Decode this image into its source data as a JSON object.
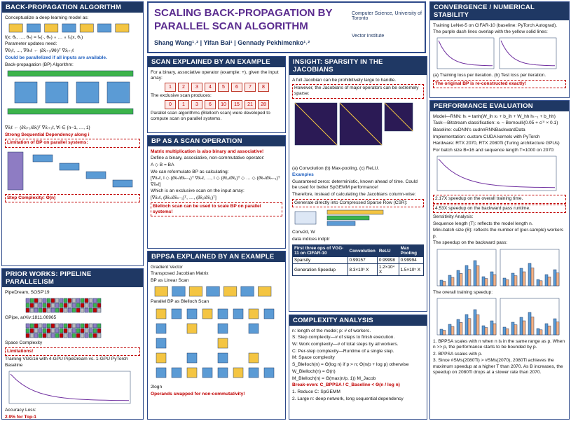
{
  "header": {
    "title": "SCALING BACK-PROPAGATION BY PARALLEL SCAN ALGORITHM",
    "authors": "Shang Wang¹˒² | Yifan Bai¹ | Gennady Pekhimenko¹˒²",
    "affiliations": [
      "Computer Science, University of Toronto",
      "Vector Institute"
    ]
  },
  "sections": [
    {
      "title": "BACK-PROPAGATION ALGORITHM",
      "items": [
        "Conceptualize a deep learning model as:",
        "f(x; θ₁, …, θₙ) = fₙ(·, θₙ) ∘ … ∘ f₁(x, θ₁)",
        "Parameter updates need:",
        "∇θ₁ℓ, …, ∇θₙℓ  ← (∂x̄ᵢ₊₁/∂θᵢ)ᵀ ∇x̄ᵢ₊₁ℓ",
        "Could be parallelized if all inputs are available.",
        "Back-propagation (BP) Algorithm:",
        "∇x̄ᵢℓ ← (∂x̄ᵢ₊₁/∂x̄ᵢ)ᵀ ∇x̄ᵢ₊₁ℓ, ∀i ∈ {n−1, …, 1}",
        "Strong Sequential Dependency along i",
        "Limitation of BP on parallel systems:",
        "Step Complexity: Θ(n)"
      ]
    },
    {
      "title": "PRIOR WORKS: PIPELINE PARALLELISM",
      "items": [
        "PipeDream, SOSP'19",
        "GPipe, arXiv:1811.06965",
        "Space Complexity",
        "Limitations!",
        "Training VGG16 with 4-GPU PipeDream vs. 1-GPU PyTorch Baseline",
        "Accuracy Loss:",
        "2.9% for Top-1"
      ]
    },
    {
      "title": "SCAN EXPLAINED BY AN EXAMPLE",
      "items": [
        "For a binary, associative operator (example: +), given the input array:",
        "The exclusive scan produces:",
        "Parallel scan algorithms (Blelloch scan) were developed to compute scan on parallel systems."
      ]
    },
    {
      "title": "BP AS A SCAN OPERATION",
      "items": [
        "Matrix multiplication is also binary and associative!",
        "Define a binary, associative, non-commutative operator:",
        "A ◇ B = BA",
        "We can reformulate BP as calculating:",
        "[∇x̄ₙℓ, I ◇ (∂x̄ₙ/∂x̄ₙ₋₁)ᵀ ∇x̄ₙℓ, …, I ◇ (∂x̄₂/∂x̄₁)ᵀ ◇ … ◇ (∂x̄ₙ/∂x̄ₙ₋₁)ᵀ ∇x̄ₙℓ]",
        "Which is an exclusive scan on the input array:",
        "[∇x̄ₙℓ, (∂x̄ₙ/∂x̄ₙ₋₁)ᵀ, …, (∂x̄₂/∂x̄₁)ᵀ]",
        "Blelloch scan can be used to scale BP on parallel systems!"
      ]
    },
    {
      "title": "BPPSA EXPLAINED BY AN EXAMPLE",
      "items": [
        "Gradient Vector",
        "Transposed Jacobian Matrix",
        "BP as Linear Scan",
        "Parallel BP as Blelloch Scan",
        "2logn",
        "Operands swapped for non-commutativity!"
      ]
    },
    {
      "title": "INSIGHT: SPARSITY IN THE JACOBIANS",
      "items": [
        "A full Jacobian can be prohibitively large to handle.",
        "However, the Jacobians of major operators can be extremely sparse:",
        "(a) Convolution   (b) Max-pooling.   (c) ReLU.",
        "Examples",
        "Guaranteed zeros: deterministic, known ahead of time. Could be used for better SpGEMM performance!",
        "Therefore, instead of calculating the Jacobians column-wise:",
        "Generate directly into Compressed Sparse Row (CSR):",
        "Conv2d, W",
        "data   indices   indptr"
      ]
    },
    {
      "title": "COMPLEXITY ANALYSIS",
      "items": [
        "n: length of the model; p: # of workers.",
        "S: Step complexity—# of steps to finish execution.",
        "W: Work complexity—# of total steps by all workers.",
        "C: Per-step complexity—Runtime of a single step.",
        "M: Space complexity",
        "S_Blelloch(n) = Θ(log n) if p > n; Θ(n/p + log p) otherwise",
        "W_Blelloch(n) = Θ(n)",
        "M_Blelloch(n) = Θ(max(n/p, 1)) M_Jacob",
        "Break-even: C_BPPSA / C_Baseline < Θ(n / log n)",
        "1. Reduce C: SpGEMM",
        "2. Large n: deep network, long sequential dependency"
      ]
    },
    {
      "title": "CONVERGENCE / NUMERICAL STABILITY",
      "items": [
        "Training LeNet-5 on CIFAR-10 (baseline: PyTorch Autograd).",
        "The purple dash lines overlap with the yellow solid lines:",
        "(a) Training loss per iteration.     (b) Test loss per iteration.",
        "The original BP is re-constructed exactly!"
      ]
    },
    {
      "title": "PERFORMANCE EVALUATION",
      "items": [
        "Model—RNN: hₜ = tanh(W_ih xₜ + b_ih + W_hh hₜ₋₁ + b_hh)",
        "Task—Bitstream classification: xₜ ~ Bernoulli(0.05 + c⁽ⁱ⁾ × 0.1)",
        "Baseline: cuDNN's cudnnRNNBackwardData",
        "Implementation: custom CUDA kernels with PyTorch",
        "Hardware: RTX 2070, RTX 2080Ti (Turing architecture GPUs)",
        "For batch size B=16 and sequence length T=1000 on 2070:",
        "2.17X speedup on the overall training time.",
        "4.53X speedup on the backward pass runtime.",
        "Sensitivity Analysis:",
        "Sequence length (T): reflects the model length n.",
        "Mini-batch size (B): reflects the number of (per-sample) workers p.",
        "The speedup on the backward pass:",
        "The overall training speedup:",
        "1. BPPSA scales with n when n is in the same range as p. When n >> p, the performance starts to be bounded by p.",
        "2. BPPSA scales with p.",
        "3. Since #SMs(2080Ti) > #SMs(2070), 2080Ti achieves the maximum speedup at a higher T than 2070. As B increases, the speedup on 2080Ti drops at a slower rate than 2070."
      ]
    }
  ],
  "scan_example": {
    "input": [
      1,
      2,
      3,
      4,
      5,
      6,
      7,
      8
    ],
    "output": [
      0,
      1,
      3,
      6,
      10,
      15,
      21,
      28
    ]
  },
  "table": {
    "header": [
      "First three ops of VGG-11 on CIFAR-10",
      "Convolution",
      "ReLU",
      "Max Pooling"
    ],
    "rows": [
      [
        "Sparsity",
        "0.99157",
        "0.99998",
        "0.99994"
      ],
      [
        "Generation Speedup",
        "8.3×10³ X",
        "1.2×10⁴ X",
        "1.5×10⁵ X"
      ]
    ]
  }
}
